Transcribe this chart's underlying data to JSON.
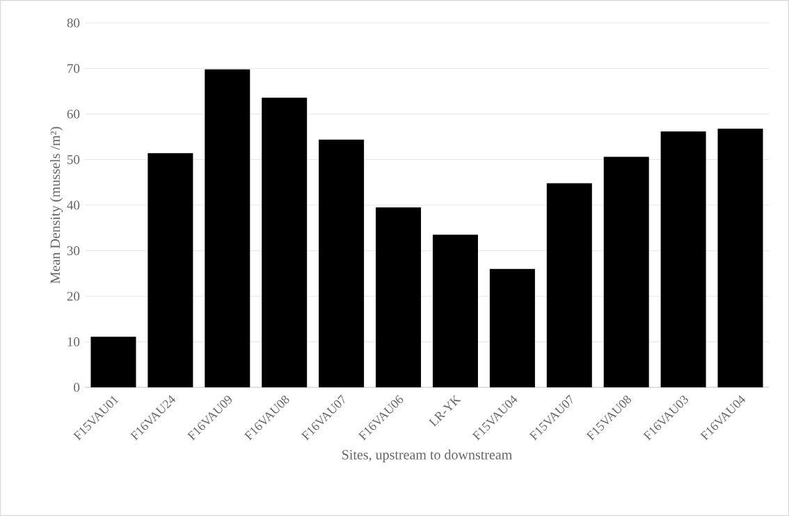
{
  "chart_data": {
    "type": "bar",
    "xlabel": "Sites, upstream to downstream",
    "ylabel": "Mean Density (mussels /m²)",
    "categories": [
      "F15VAU01",
      "F16VAU24",
      "F16VAU09",
      "F16VAU08",
      "F16VAU07",
      "F16VAU06",
      "LR-YK",
      "F15VAU04",
      "F15VAU07",
      "F15VAU08",
      "F16VAU03",
      "F16VAU04"
    ],
    "values": [
      11.1,
      51.4,
      69.8,
      63.6,
      54.4,
      39.5,
      33.5,
      26.0,
      44.8,
      50.6,
      56.2,
      56.8
    ],
    "color": "#000000",
    "ylim": [
      0,
      80
    ],
    "yticks": [
      0,
      10,
      20,
      30,
      40,
      50,
      60,
      70,
      80
    ],
    "grid": "y"
  }
}
